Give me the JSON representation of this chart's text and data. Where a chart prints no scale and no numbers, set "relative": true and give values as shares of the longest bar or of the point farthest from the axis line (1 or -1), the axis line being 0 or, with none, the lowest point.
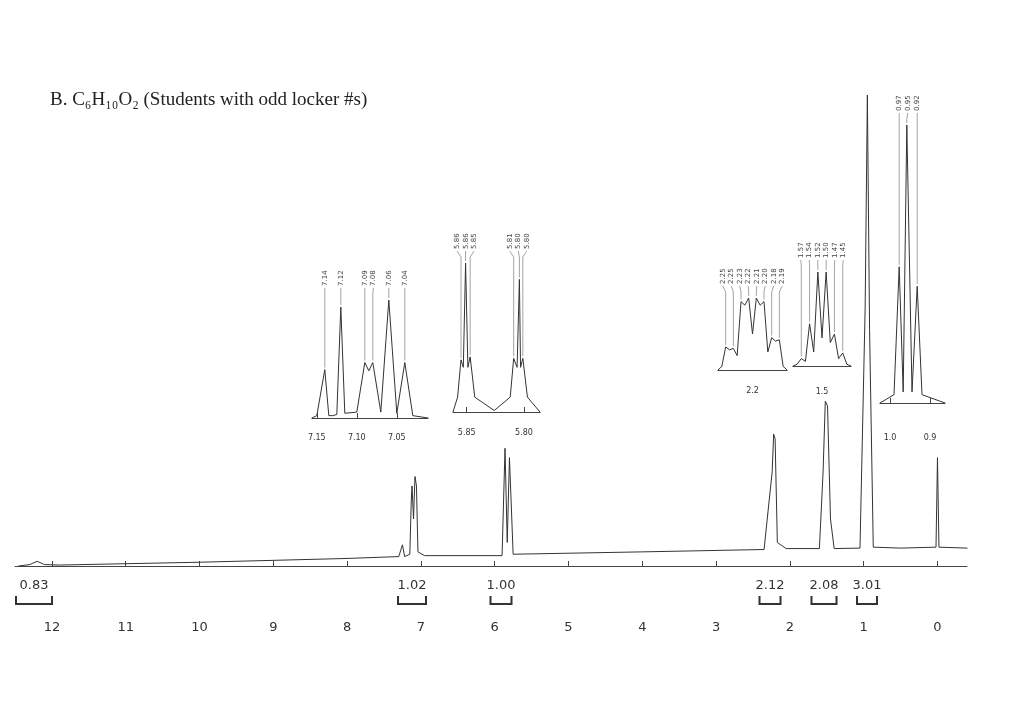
{
  "chart_data": [
    {
      "type": "line",
      "title": "B. C₆H₁₀O₂ (Students with odd locker #s)",
      "relative": true,
      "color": "#333333",
      "xlim": [
        12.5,
        -0.4
      ],
      "xticks": [
        12,
        11,
        10,
        9,
        8,
        7,
        6,
        5,
        4,
        3,
        2,
        1,
        0
      ],
      "x": [
        12.45,
        12.3,
        12.2,
        12.1,
        11.9,
        10,
        8,
        7.3,
        7.25,
        7.22,
        7.15,
        7.13,
        7.12,
        7.1,
        7.08,
        7.06,
        7.04,
        6.95,
        5.9,
        5.86,
        5.83,
        5.8,
        5.75,
        4,
        2.35,
        2.24,
        2.22,
        2.2,
        2.17,
        2.05,
        1.6,
        1.55,
        1.52,
        1.49,
        1.45,
        1.4,
        1.05,
        0.98,
        0.95,
        0.92,
        0.87,
        0.5,
        0.02,
        0,
        -0.02,
        -0.4
      ],
      "values": [
        0,
        0.003,
        0.01,
        0.003,
        0.002,
        0.008,
        0.016,
        0.02,
        0.045,
        0.02,
        0.025,
        0.14,
        0.17,
        0.1,
        0.19,
        0.17,
        0.03,
        0.022,
        0.022,
        0.25,
        0.05,
        0.23,
        0.025,
        0.03,
        0.035,
        0.2,
        0.28,
        0.27,
        0.05,
        0.037,
        0.037,
        0.2,
        0.35,
        0.34,
        0.1,
        0.037,
        0.038,
        0.55,
        1,
        0.5,
        0.04,
        0.038,
        0.04,
        0.23,
        0.04,
        0.038
      ],
      "annotations": [
        "0.83",
        "1.02",
        "1.00",
        "2.12",
        "2.08",
        "3.01"
      ]
    },
    {
      "type": "line",
      "relative": true,
      "color": "#333333",
      "xlim": [
        7.156,
        7.011
      ],
      "xticks": [
        {
          "value": 7.15,
          "label": "7.15"
        },
        {
          "value": 7.1,
          "label": "7.10"
        },
        {
          "value": 7.05,
          "label": "7.05"
        }
      ],
      "x": [
        7.156,
        7.15,
        7.14,
        7.135,
        7.13,
        7.125,
        7.12,
        7.115,
        7.1,
        7.09,
        7.085,
        7.08,
        7.07,
        7.06,
        7.05,
        7.04,
        7.03,
        7.011
      ],
      "values": [
        0,
        0.02,
        0.41,
        0.02,
        0.02,
        0.03,
        0.94,
        0.04,
        0.05,
        0.47,
        0.4,
        0.47,
        0.05,
        1,
        0.04,
        0.47,
        0.02,
        0
      ],
      "annotations": [
        {
          "text": "7.14",
          "x": 7.14,
          "y": 0.41
        },
        {
          "text": "7.12",
          "x": 7.12,
          "y": 0.94
        },
        {
          "text": "7.09",
          "x": 7.09,
          "y": 0.47
        },
        {
          "text": "7.08",
          "x": 7.08,
          "y": 0.47
        },
        {
          "text": "7.06",
          "x": 7.06,
          "y": 1
        },
        {
          "text": "7.04",
          "x": 7.04,
          "y": 0.47
        }
      ]
    },
    {
      "type": "line",
      "relative": true,
      "color": "#333333",
      "xlim": [
        5.862,
        5.786
      ],
      "xticks": [
        {
          "value": 5.85,
          "label": "5.85"
        },
        {
          "value": 5.8,
          "label": "5.80"
        }
      ],
      "x": [
        5.862,
        5.858,
        5.855,
        5.853,
        5.851,
        5.849,
        5.847,
        5.843,
        5.826,
        5.812,
        5.809,
        5.806,
        5.804,
        5.803,
        5.801,
        5.797,
        5.786
      ],
      "values": [
        0,
        0.1,
        0.35,
        0.3,
        1,
        0.3,
        0.37,
        0.1,
        0.01,
        0.1,
        0.36,
        0.3,
        0.89,
        0.3,
        0.36,
        0.1,
        0
      ],
      "annotations": [
        {
          "text": "5.86",
          "x": 5.855,
          "y": 0.35
        },
        {
          "text": "5.86",
          "x": 5.851,
          "y": 1
        },
        {
          "text": "5.85",
          "x": 5.847,
          "y": 0.37
        },
        {
          "text": "5.81",
          "x": 5.809,
          "y": 0.36
        },
        {
          "text": "5.80",
          "x": 5.804,
          "y": 0.89
        },
        {
          "text": "5.80",
          "x": 5.801,
          "y": 0.36
        }
      ]
    },
    {
      "type": "line",
      "relative": true,
      "color": "#333333",
      "xlabel": "2.2",
      "categories": [
        null,
        null,
        null,
        null,
        null,
        null,
        null,
        null,
        null,
        null,
        null,
        null,
        null,
        null,
        null,
        null,
        null,
        null,
        null
      ],
      "values": [
        0,
        0.05,
        0.32,
        0.28,
        0.3,
        0.2,
        0.95,
        0.9,
        1,
        0.5,
        1,
        0.9,
        0.95,
        0.25,
        0.45,
        0.4,
        0.42,
        0.05,
        0
      ],
      "annotations": [
        "2.25",
        "2.25",
        "2.23",
        "2.22",
        "2.21",
        "2.20",
        "2.18",
        "2.19"
      ]
    },
    {
      "type": "line",
      "relative": true,
      "color": "#333333",
      "xlabel": "1.5",
      "categories": [
        null,
        null,
        null,
        null,
        null,
        null,
        null,
        null,
        null,
        null,
        null,
        null,
        null,
        null,
        null
      ],
      "values": [
        0,
        0.02,
        0.08,
        0.05,
        0.45,
        0.15,
        1,
        0.3,
        1,
        0.25,
        0.34,
        0.08,
        0.14,
        0.02,
        0
      ],
      "annotations": [
        "1.57",
        "1.54",
        "1.52",
        "1.50",
        "1.47",
        "1.45"
      ]
    },
    {
      "type": "line",
      "relative": true,
      "color": "#333333",
      "xlim": [
        1.025,
        0.8625
      ],
      "xticks": [
        {
          "value": 1,
          "label": "1.0"
        },
        {
          "value": 0.9,
          "label": "0.9"
        }
      ],
      "x": [
        1.025,
        0.99,
        0.977,
        0.967,
        0.958,
        0.945,
        0.932,
        0.92,
        0.8625
      ],
      "values": [
        0,
        0.03,
        0.49,
        0.04,
        1,
        0.04,
        0.42,
        0.03,
        0
      ],
      "annotations": [
        {
          "text": "0.97",
          "x": 0.977,
          "y": 0.49
        },
        {
          "text": "0.95",
          "x": 0.958,
          "y": 1
        },
        {
          "text": "0.92",
          "x": 0.932,
          "y": 0.42
        }
      ]
    }
  ]
}
